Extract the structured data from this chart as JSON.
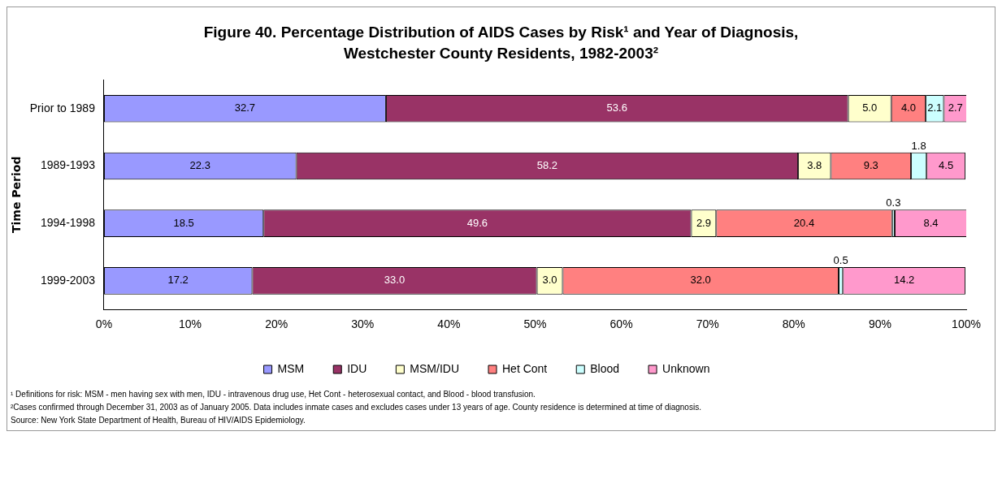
{
  "chart_data": {
    "type": "bar",
    "orientation": "horizontal",
    "stacked": true,
    "title": "Figure 40. Percentage Distribution of AIDS Cases by Risk¹ and Year of Diagnosis, Westchester County Residents, 1982-2003²",
    "ylabel": "Time Period",
    "categories": [
      "Prior to 1989",
      "1989-1993",
      "1994-1998",
      "1999-2003"
    ],
    "series": [
      {
        "name": "MSM",
        "color": "#9999ff",
        "values": [
          32.7,
          22.3,
          18.5,
          17.2
        ],
        "value_labels": [
          "32.7",
          "22.3",
          "18.5",
          "17.2"
        ]
      },
      {
        "name": "IDU",
        "color": "#993366",
        "values": [
          53.6,
          58.2,
          49.6,
          33.0
        ],
        "value_labels": [
          "53.6",
          "58.2",
          "49.6",
          "33.0"
        ]
      },
      {
        "name": "MSM/IDU",
        "color": "#ffffcc",
        "values": [
          5.0,
          3.8,
          2.9,
          3.0
        ],
        "value_labels": [
          "5.0",
          "3.8",
          "2.9",
          "3.0"
        ]
      },
      {
        "name": "Het Cont",
        "color": "#ff8080",
        "values": [
          4.0,
          9.3,
          20.4,
          32.0
        ],
        "value_labels": [
          "4.0",
          "9.3",
          "20.4",
          "32.0"
        ]
      },
      {
        "name": "Blood",
        "color": "#ccffff",
        "values": [
          2.1,
          1.8,
          0.3,
          0.5
        ],
        "value_labels": [
          "2.1",
          "1.8",
          "0.3",
          "0.5"
        ]
      },
      {
        "name": "Unknown",
        "color": "#ff99cc",
        "values": [
          2.7,
          4.5,
          8.4,
          14.2
        ],
        "value_labels": [
          "2.7",
          "4.5",
          "8.4",
          "14.2"
        ]
      }
    ],
    "xlim": [
      0,
      100
    ],
    "xticks": [
      {
        "value": 0,
        "label": "0%"
      },
      {
        "value": 10,
        "label": "10%"
      },
      {
        "value": 20,
        "label": "20%"
      },
      {
        "value": 30,
        "label": "30%"
      },
      {
        "value": 40,
        "label": "40%"
      },
      {
        "value": 50,
        "label": "50%"
      },
      {
        "value": 60,
        "label": "60%"
      },
      {
        "value": 70,
        "label": "70%"
      },
      {
        "value": 80,
        "label": "80%"
      },
      {
        "value": 90,
        "label": "90%"
      },
      {
        "value": 100,
        "label": "100%"
      }
    ],
    "grid": false,
    "legend": "bottom",
    "annotations": [
      "¹ Definitions for risk: MSM - men having sex with men, IDU - intravenous drug use, Het Cont - heterosexual contact, and Blood - blood transfusion.",
      "²Cases confirmed through December 31, 2003 as of January 2005. Data includes inmate cases and excludes cases under 13 years of age. County residence is determined at time of diagnosis.",
      "Source: New York State Department of Health, Bureau of HIV/AIDS Epidemiology."
    ]
  }
}
